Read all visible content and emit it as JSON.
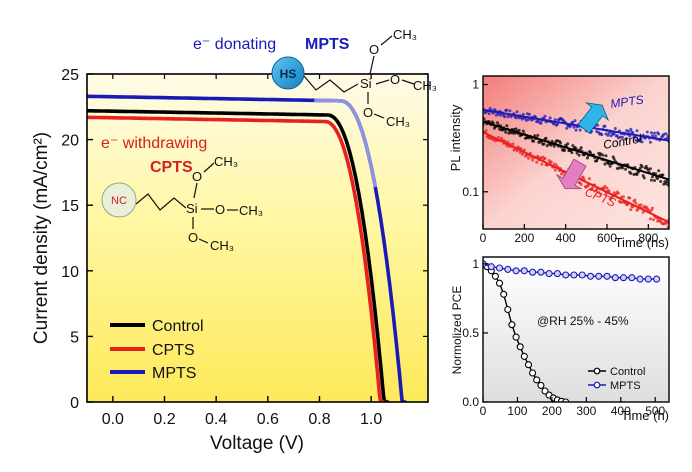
{
  "colors": {
    "control": "#000000",
    "cpts": "#e8201f",
    "mpts": "#1a1ab8",
    "mpts_light": "#8d93e0",
    "hs_circle": "#1e9ad8",
    "nc_circle": "#e9efd8",
    "arrow_up": "#2eb4e6",
    "arrow_down": "#e37fc0",
    "donating_text": "#1a1ab8",
    "withdrawing_text": "#d42020"
  },
  "annotations": {
    "donating": "e⁻ donating",
    "mpts_bold": "MPTS",
    "withdrawing": "e⁻ withdrawing",
    "cpts_bold": "CPTS",
    "hs": "HS",
    "nc": "NC",
    "si": "Si",
    "o": "O",
    "ch3": "CH₃",
    "rh": "@RH 25% - 45%"
  },
  "chart_data": [
    {
      "type": "line",
      "xlabel": "Voltage (V)",
      "ylabel": "Current density (mA/cm²)",
      "xlim": [
        -0.1,
        1.22
      ],
      "ylim": [
        0,
        25
      ],
      "xticks": [
        "0.0",
        "0.2",
        "0.4",
        "0.6",
        "0.8",
        "1.0"
      ],
      "xtick_values": [
        0.0,
        0.2,
        0.4,
        0.6,
        0.8,
        1.0
      ],
      "yticks": [
        "0",
        "5",
        "10",
        "15",
        "20",
        "25"
      ],
      "ytick_values": [
        0,
        5,
        10,
        15,
        20,
        25
      ],
      "legend": [
        "Control",
        "CPTS",
        "MPTS"
      ],
      "legend_position": "bottom-left",
      "series": [
        {
          "name": "Control",
          "jsc": 22.2,
          "voc": 1.05,
          "knee": 0.83,
          "slope": 0.5
        },
        {
          "name": "CPTS",
          "jsc": 21.7,
          "voc": 1.035,
          "knee": 0.82,
          "slope": 0.5
        },
        {
          "name": "MPTS",
          "jsc": 23.3,
          "voc": 1.12,
          "knee": 0.88,
          "slope": 0.5
        }
      ]
    },
    {
      "type": "scatter",
      "xlabel": "Time (ns)",
      "ylabel": "PL intensity",
      "yscale": "log",
      "xlim": [
        0,
        900
      ],
      "ylim": [
        0.045,
        1.2
      ],
      "xticks": [
        "0",
        "200",
        "400",
        "600",
        "800"
      ],
      "xtick_values": [
        0,
        200,
        400,
        600,
        800
      ],
      "yticks": [
        "1",
        "0.1"
      ],
      "ytick_values": [
        1,
        0.1
      ],
      "series": [
        {
          "name": "MPTS",
          "start": 0.58,
          "end": 0.3
        },
        {
          "name": "Control",
          "start": 0.45,
          "end": 0.13
        },
        {
          "name": "CPTS",
          "start": 0.36,
          "end": 0.052
        }
      ]
    },
    {
      "type": "line",
      "xlabel": "Time (h)",
      "ylabel": "Normolized PCE",
      "xlim": [
        0,
        540
      ],
      "ylim": [
        0,
        1.05
      ],
      "xticks": [
        "0",
        "100",
        "200",
        "300",
        "400",
        "500"
      ],
      "xtick_values": [
        0,
        100,
        200,
        300,
        400,
        500
      ],
      "yticks": [
        "0.0",
        "0.5",
        "1"
      ],
      "ytick_values": [
        0,
        0.5,
        1
      ],
      "legend": [
        "Control",
        "MPTS"
      ],
      "legend_position": "bottom-right",
      "series": [
        {
          "name": "Control",
          "x": [
            0,
            12,
            24,
            36,
            48,
            60,
            72,
            84,
            96,
            108,
            120,
            132,
            144,
            156,
            168,
            180,
            192,
            204,
            216,
            228,
            240
          ],
          "y": [
            1.0,
            0.98,
            0.95,
            0.91,
            0.86,
            0.78,
            0.67,
            0.56,
            0.47,
            0.4,
            0.33,
            0.27,
            0.21,
            0.16,
            0.12,
            0.08,
            0.05,
            0.03,
            0.015,
            0.005,
            0.0
          ]
        },
        {
          "name": "MPTS",
          "x": [
            0,
            24,
            48,
            72,
            96,
            120,
            144,
            168,
            192,
            216,
            240,
            264,
            288,
            312,
            336,
            360,
            384,
            408,
            432,
            456,
            480,
            504
          ],
          "y": [
            1.0,
            0.98,
            0.97,
            0.96,
            0.95,
            0.95,
            0.94,
            0.94,
            0.93,
            0.93,
            0.92,
            0.92,
            0.92,
            0.91,
            0.91,
            0.91,
            0.9,
            0.9,
            0.9,
            0.89,
            0.89,
            0.89
          ]
        }
      ]
    }
  ]
}
